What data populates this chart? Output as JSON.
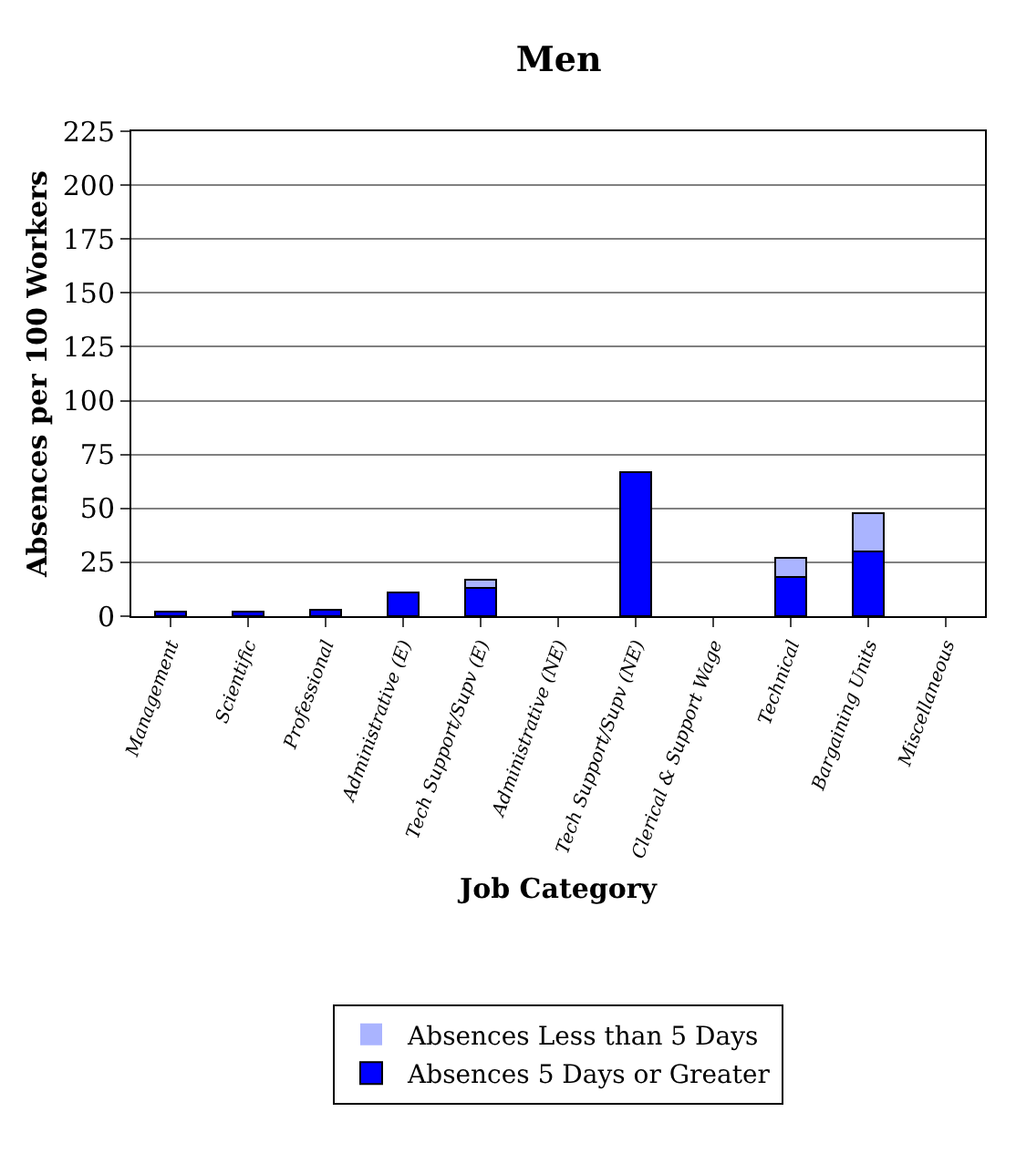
{
  "chart_data": {
    "type": "bar",
    "title": "Men",
    "xlabel": "Job Category",
    "ylabel": "Absences per 100 Workers",
    "categories": [
      "Management",
      "Scientific",
      "Professional",
      "Administrative (E)",
      "Tech Support/Supv (E)",
      "Administrative (NE)",
      "Tech Support/Supv (NE)",
      "Clerical & Support Wage",
      "Technical",
      "Bargaining Units",
      "Miscellaneous"
    ],
    "stacked": true,
    "series": [
      {
        "name": "Absences 5 Days or Greater",
        "color": "#0000ff",
        "values": [
          2,
          2,
          3,
          11,
          13,
          0,
          67,
          0,
          18,
          30,
          0
        ]
      },
      {
        "name": "Absences Less than 5 Days",
        "color": "#aab4ff",
        "values": [
          0,
          0,
          0,
          0,
          4,
          0,
          0,
          0,
          9,
          18,
          0
        ]
      }
    ],
    "ylim": [
      0,
      225
    ],
    "yticks": [
      0,
      25,
      50,
      75,
      100,
      125,
      150,
      175,
      200,
      225
    ],
    "grid": "y",
    "legend": "bottom"
  }
}
